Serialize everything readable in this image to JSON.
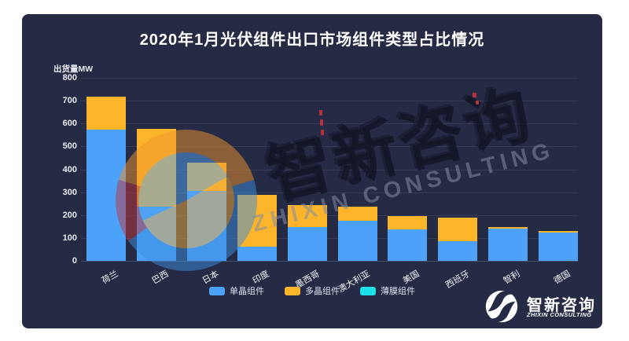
{
  "colors": {
    "card_bg": "#262b45",
    "mono_blue": "#4ba2f8",
    "poly_orange": "#fcb52a",
    "thin_cyan": "#1ce1e8"
  },
  "watermark": {
    "cn": "智新咨询",
    "en": "ZHIXIN CONSULTING"
  },
  "logo": {
    "cn": "智新咨询",
    "en": "ZHIXIN CONSULTING"
  },
  "chart_data": {
    "type": "bar",
    "stacked": true,
    "title": "2020年1月光伏组件出口市场组件类型占比情况",
    "ylabel": "出货量MW",
    "xlabel": "",
    "ylim": [
      0,
      800
    ],
    "y_ticks": [
      800,
      700,
      600,
      500,
      400,
      300,
      200,
      100,
      0
    ],
    "grid": true,
    "legend_position": "bottom",
    "categories": [
      "荷兰",
      "巴西",
      "日本",
      "印度",
      "墨西哥",
      "澳大利亚",
      "美国",
      "西班牙",
      "智利",
      "德国"
    ],
    "series": [
      {
        "name": "单晶组件",
        "color": "#4ba2f8",
        "values": [
          572,
          238,
          306,
          62,
          148,
          176,
          138,
          85,
          140,
          124
        ]
      },
      {
        "name": "多晶组件",
        "color": "#fcb52a",
        "values": [
          146,
          339,
          124,
          226,
          95,
          62,
          58,
          103,
          7,
          8
        ]
      },
      {
        "name": "薄膜组件",
        "color": "#1ce1e8",
        "values": [
          0,
          0,
          0,
          0,
          0,
          0,
          0,
          0,
          0,
          0
        ]
      }
    ],
    "totals": [
      718,
      577,
      430,
      288,
      243,
      238,
      196,
      188,
      147,
      132
    ]
  }
}
